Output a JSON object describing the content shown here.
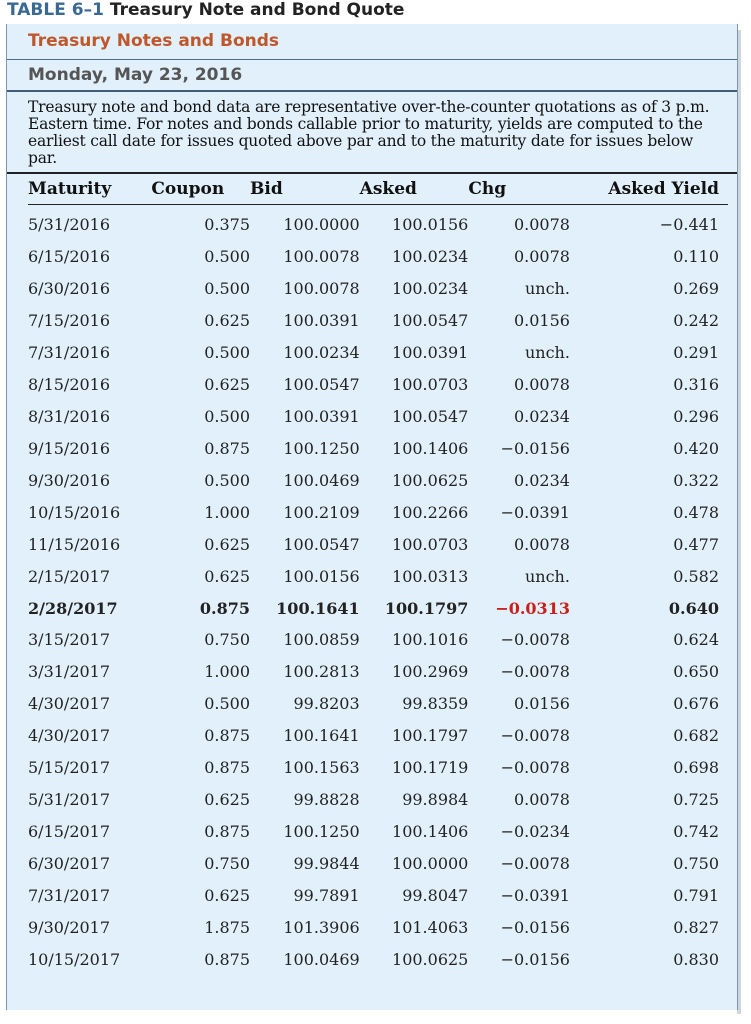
{
  "table_label": "TABLE 6–1",
  "table_title": "Treasury Note and Bond Quote",
  "section_title": "Treasury Notes and Bonds",
  "date": "Monday, May 23, 2016",
  "notes": "Treasury note and bond data are representative over-the-counter quotations as of 3 p.m. Eastern time. For notes and bonds callable prior to maturity, yields are computed to the earliest call date for issues quoted above par and to the maturity date for issues below par.",
  "columns": [
    "Maturity",
    "Coupon",
    "Bid",
    "Asked",
    "Chg",
    "Asked Yield"
  ],
  "colors": {
    "positive": "#2a8f2a",
    "negative": "#d42a1c",
    "accent": "#c0572b",
    "panel": "#e1f0fa"
  },
  "rows": [
    {
      "maturity": "5/31/2016",
      "coupon": "0.375",
      "bid": "100.0000",
      "asked": "100.0156",
      "chg": "0.0078",
      "yield": "−0.441"
    },
    {
      "maturity": "6/15/2016",
      "coupon": "0.500",
      "bid": "100.0078",
      "asked": "100.0234",
      "chg": "0.0078",
      "yield": "0.110"
    },
    {
      "maturity": "6/30/2016",
      "coupon": "0.500",
      "bid": "100.0078",
      "asked": "100.0234",
      "chg": "unch.",
      "yield": "0.269"
    },
    {
      "maturity": "7/15/2016",
      "coupon": "0.625",
      "bid": "100.0391",
      "asked": "100.0547",
      "chg": "0.0156",
      "yield": "0.242"
    },
    {
      "maturity": "7/31/2016",
      "coupon": "0.500",
      "bid": "100.0234",
      "asked": "100.0391",
      "chg": "unch.",
      "yield": "0.291"
    },
    {
      "maturity": "8/15/2016",
      "coupon": "0.625",
      "bid": "100.0547",
      "asked": "100.0703",
      "chg": "0.0078",
      "yield": "0.316"
    },
    {
      "maturity": "8/31/2016",
      "coupon": "0.500",
      "bid": "100.0391",
      "asked": "100.0547",
      "chg": "0.0234",
      "yield": "0.296"
    },
    {
      "maturity": "9/15/2016",
      "coupon": "0.875",
      "bid": "100.1250",
      "asked": "100.1406",
      "chg": "−0.0156",
      "yield": "0.420"
    },
    {
      "maturity": "9/30/2016",
      "coupon": "0.500",
      "bid": "100.0469",
      "asked": "100.0625",
      "chg": "0.0234",
      "yield": "0.322"
    },
    {
      "maturity": "10/15/2016",
      "coupon": "1.000",
      "bid": "100.2109",
      "asked": "100.2266",
      "chg": "−0.0391",
      "yield": "0.478"
    },
    {
      "maturity": "11/15/2016",
      "coupon": "0.625",
      "bid": "100.0547",
      "asked": "100.0703",
      "chg": "0.0078",
      "yield": "0.477"
    },
    {
      "maturity": "2/15/2017",
      "coupon": "0.625",
      "bid": "100.0156",
      "asked": "100.0313",
      "chg": "unch.",
      "yield": "0.582"
    },
    {
      "maturity": "2/28/2017",
      "coupon": "0.875",
      "bid": "100.1641",
      "asked": "100.1797",
      "chg": "−0.0313",
      "yield": "0.640",
      "bold": true
    },
    {
      "maturity": "3/15/2017",
      "coupon": "0.750",
      "bid": "100.0859",
      "asked": "100.1016",
      "chg": "−0.0078",
      "yield": "0.624"
    },
    {
      "maturity": "3/31/2017",
      "coupon": "1.000",
      "bid": "100.2813",
      "asked": "100.2969",
      "chg": "−0.0078",
      "yield": "0.650"
    },
    {
      "maturity": "4/30/2017",
      "coupon": "0.500",
      "bid": "99.8203",
      "asked": "99.8359",
      "chg": "0.0156",
      "yield": "0.676"
    },
    {
      "maturity": "4/30/2017",
      "coupon": "0.875",
      "bid": "100.1641",
      "asked": "100.1797",
      "chg": "−0.0078",
      "yield": "0.682"
    },
    {
      "maturity": "5/15/2017",
      "coupon": "0.875",
      "bid": "100.1563",
      "asked": "100.1719",
      "chg": "−0.0078",
      "yield": "0.698"
    },
    {
      "maturity": "5/31/2017",
      "coupon": "0.625",
      "bid": "99.8828",
      "asked": "99.8984",
      "chg": "0.0078",
      "yield": "0.725"
    },
    {
      "maturity": "6/15/2017",
      "coupon": "0.875",
      "bid": "100.1250",
      "asked": "100.1406",
      "chg": "−0.0234",
      "yield": "0.742"
    },
    {
      "maturity": "6/30/2017",
      "coupon": "0.750",
      "bid": "99.9844",
      "asked": "100.0000",
      "chg": "−0.0078",
      "yield": "0.750"
    },
    {
      "maturity": "7/31/2017",
      "coupon": "0.625",
      "bid": "99.7891",
      "asked": "99.8047",
      "chg": "−0.0391",
      "yield": "0.791"
    },
    {
      "maturity": "9/30/2017",
      "coupon": "1.875",
      "bid": "101.3906",
      "asked": "101.4063",
      "chg": "−0.0156",
      "yield": "0.827"
    },
    {
      "maturity": "10/15/2017",
      "coupon": "0.875",
      "bid": "100.0469",
      "asked": "100.0625",
      "chg": "−0.0156",
      "yield": "0.830"
    }
  ]
}
